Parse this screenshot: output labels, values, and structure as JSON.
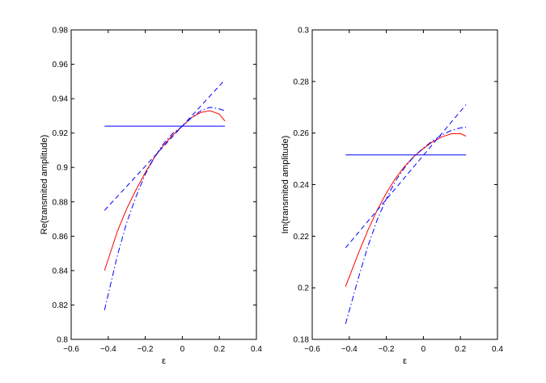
{
  "chart_data": [
    {
      "type": "line",
      "xlabel": "ε",
      "ylabel": "Re(transmited amplitude)",
      "xlim": [
        -0.6,
        0.4
      ],
      "ylim": [
        0.8,
        0.98
      ],
      "xticks": [
        "−0.6",
        "−0.4",
        "−0.2",
        "0",
        "0.2",
        "0.4"
      ],
      "yticks": [
        "0.8",
        "0.82",
        "0.84",
        "0.86",
        "0.88",
        "0.9",
        "0.92",
        "0.94",
        "0.96",
        "0.98"
      ],
      "grid": false,
      "series": [
        {
          "style": "solid",
          "color": "#ff0000",
          "x": [
            -0.42,
            -0.35,
            -0.3,
            -0.25,
            -0.2,
            -0.15,
            -0.1,
            -0.05,
            0,
            0.05,
            0.1,
            0.15,
            0.2,
            0.23
          ],
          "y": [
            0.84,
            0.863,
            0.876,
            0.887,
            0.897,
            0.906,
            0.913,
            0.919,
            0.924,
            0.929,
            0.932,
            0.933,
            0.931,
            0.927
          ]
        },
        {
          "style": "dashed",
          "color": "#0000ff",
          "x": [
            -0.42,
            0.23
          ],
          "y": [
            0.875,
            0.951
          ]
        },
        {
          "style": "dashdot",
          "color": "#0000ff",
          "x": [
            -0.42,
            -0.35,
            -0.3,
            -0.25,
            -0.2,
            -0.15,
            -0.1,
            -0.05,
            0,
            0.05,
            0.1,
            0.15,
            0.2,
            0.23
          ],
          "y": [
            0.817,
            0.849,
            0.868,
            0.883,
            0.896,
            0.906,
            0.914,
            0.92,
            0.924,
            0.929,
            0.933,
            0.935,
            0.934,
            0.933
          ]
        },
        {
          "style": "solid",
          "color": "#0000ff",
          "x": [
            -0.42,
            0.23
          ],
          "y": [
            0.924,
            0.924
          ]
        }
      ]
    },
    {
      "type": "line",
      "xlabel": "ε",
      "ylabel": "Im(transmited amplitude)",
      "xlim": [
        -0.6,
        0.4
      ],
      "ylim": [
        0.18,
        0.3
      ],
      "xticks": [
        "−0.6",
        "−0.4",
        "−0.2",
        "0",
        "0.2",
        "0.4"
      ],
      "yticks": [
        "0.18",
        "0.2",
        "0.22",
        "0.24",
        "0.26",
        "0.28",
        "0.3"
      ],
      "grid": false,
      "series": [
        {
          "style": "solid",
          "color": "#ff0000",
          "x": [
            -0.42,
            -0.35,
            -0.3,
            -0.25,
            -0.2,
            -0.15,
            -0.1,
            -0.05,
            0,
            0.05,
            0.1,
            0.15,
            0.2,
            0.23
          ],
          "y": [
            0.2005,
            0.2135,
            0.2222,
            0.23,
            0.2367,
            0.2425,
            0.2472,
            0.251,
            0.254,
            0.2566,
            0.2585,
            0.2597,
            0.2598,
            0.2588
          ]
        },
        {
          "style": "dashed",
          "color": "#0000ff",
          "x": [
            -0.42,
            0.23
          ],
          "y": [
            0.2155,
            0.271
          ]
        },
        {
          "style": "dashdot",
          "color": "#0000ff",
          "x": [
            -0.42,
            -0.35,
            -0.3,
            -0.25,
            -0.2,
            -0.15,
            -0.1,
            -0.05,
            0,
            0.05,
            0.1,
            0.15,
            0.2,
            0.23
          ],
          "y": [
            0.186,
            0.204,
            0.216,
            0.2262,
            0.2345,
            0.2415,
            0.2467,
            0.251,
            0.2542,
            0.257,
            0.2592,
            0.261,
            0.262,
            0.2623
          ]
        },
        {
          "style": "solid",
          "color": "#0000ff",
          "x": [
            -0.42,
            0.23
          ],
          "y": [
            0.2515,
            0.2515
          ]
        }
      ]
    }
  ]
}
